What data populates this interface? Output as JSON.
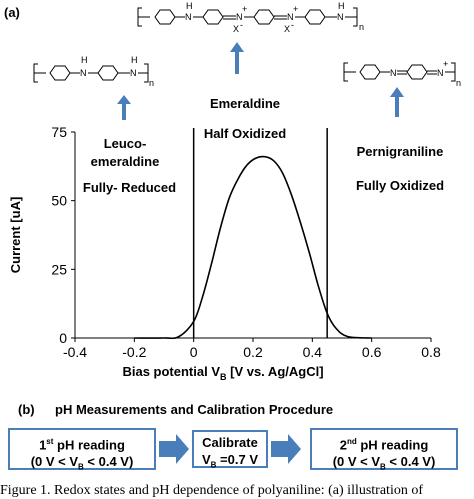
{
  "panel_a_label": "(a)",
  "panel_b_label": "(b)",
  "states": {
    "leuco": {
      "line1": "Leuco-",
      "line2": "emeraldine",
      "desc": "Fully- Reduced"
    },
    "emeraldine": {
      "name": "Emeraldine",
      "desc": "Half Oxidized"
    },
    "pernigraniline": {
      "name": "Pernigraniline",
      "desc": "Fully Oxidized"
    }
  },
  "structures": {
    "n_subscript": "n",
    "x_minus": "X⁻",
    "nh": "N",
    "h": "H"
  },
  "chart_data": {
    "type": "line",
    "xlabel_parts": [
      "Bias potential V",
      "B",
      " [V vs. Ag/AgCl]"
    ],
    "ylabel": "Current [uA]",
    "xlim": [
      -0.4,
      0.8
    ],
    "ylim": [
      0,
      75
    ],
    "xticks": [
      "-0.4",
      "-0.2",
      "0",
      "0.2",
      "0.4",
      "0.6",
      "0.8"
    ],
    "yticks": [
      "0",
      "25",
      "50",
      "75"
    ],
    "vlines": [
      0.0,
      0.45
    ],
    "series": [
      {
        "x": [
          -0.2,
          -0.1,
          -0.05,
          0.0,
          0.03,
          0.06,
          0.09,
          0.12,
          0.15,
          0.18,
          0.21,
          0.24,
          0.27,
          0.3,
          0.33,
          0.36,
          0.39,
          0.42,
          0.45,
          0.48,
          0.52,
          0.6
        ],
        "y": [
          0,
          0,
          0.5,
          6.0,
          15.0,
          27.0,
          40.0,
          51.0,
          58.0,
          63.0,
          65.5,
          66.0,
          64.5,
          60.0,
          52.0,
          42.0,
          31.0,
          19.0,
          9.0,
          3.5,
          0.5,
          0
        ]
      }
    ]
  },
  "calibration": {
    "title": "pH Measurements and Calibration Procedure",
    "box1": {
      "line1_pre": "1",
      "line1_sup": "st",
      "line1_post": " pH reading",
      "line2": "(0 V < V",
      "line2_sub": "B",
      "line2_post": " < 0.4 V)"
    },
    "box2": {
      "line1": "Calibrate",
      "line2_pre": "V",
      "line2_sub": "B",
      "line2_post": " =0.7 V"
    },
    "box3": {
      "line1_pre": "2",
      "line1_sup": "nd",
      "line1_post": " pH reading",
      "line2": "(0 V < V",
      "line2_sub": "B",
      "line2_post": " < 0.4 V)"
    }
  },
  "caption": "Figure 1. Redox states and pH dependence of polyaniline: (a) illustration of",
  "colors": {
    "arrow": "#4a7ebb",
    "curve": "#000000"
  }
}
